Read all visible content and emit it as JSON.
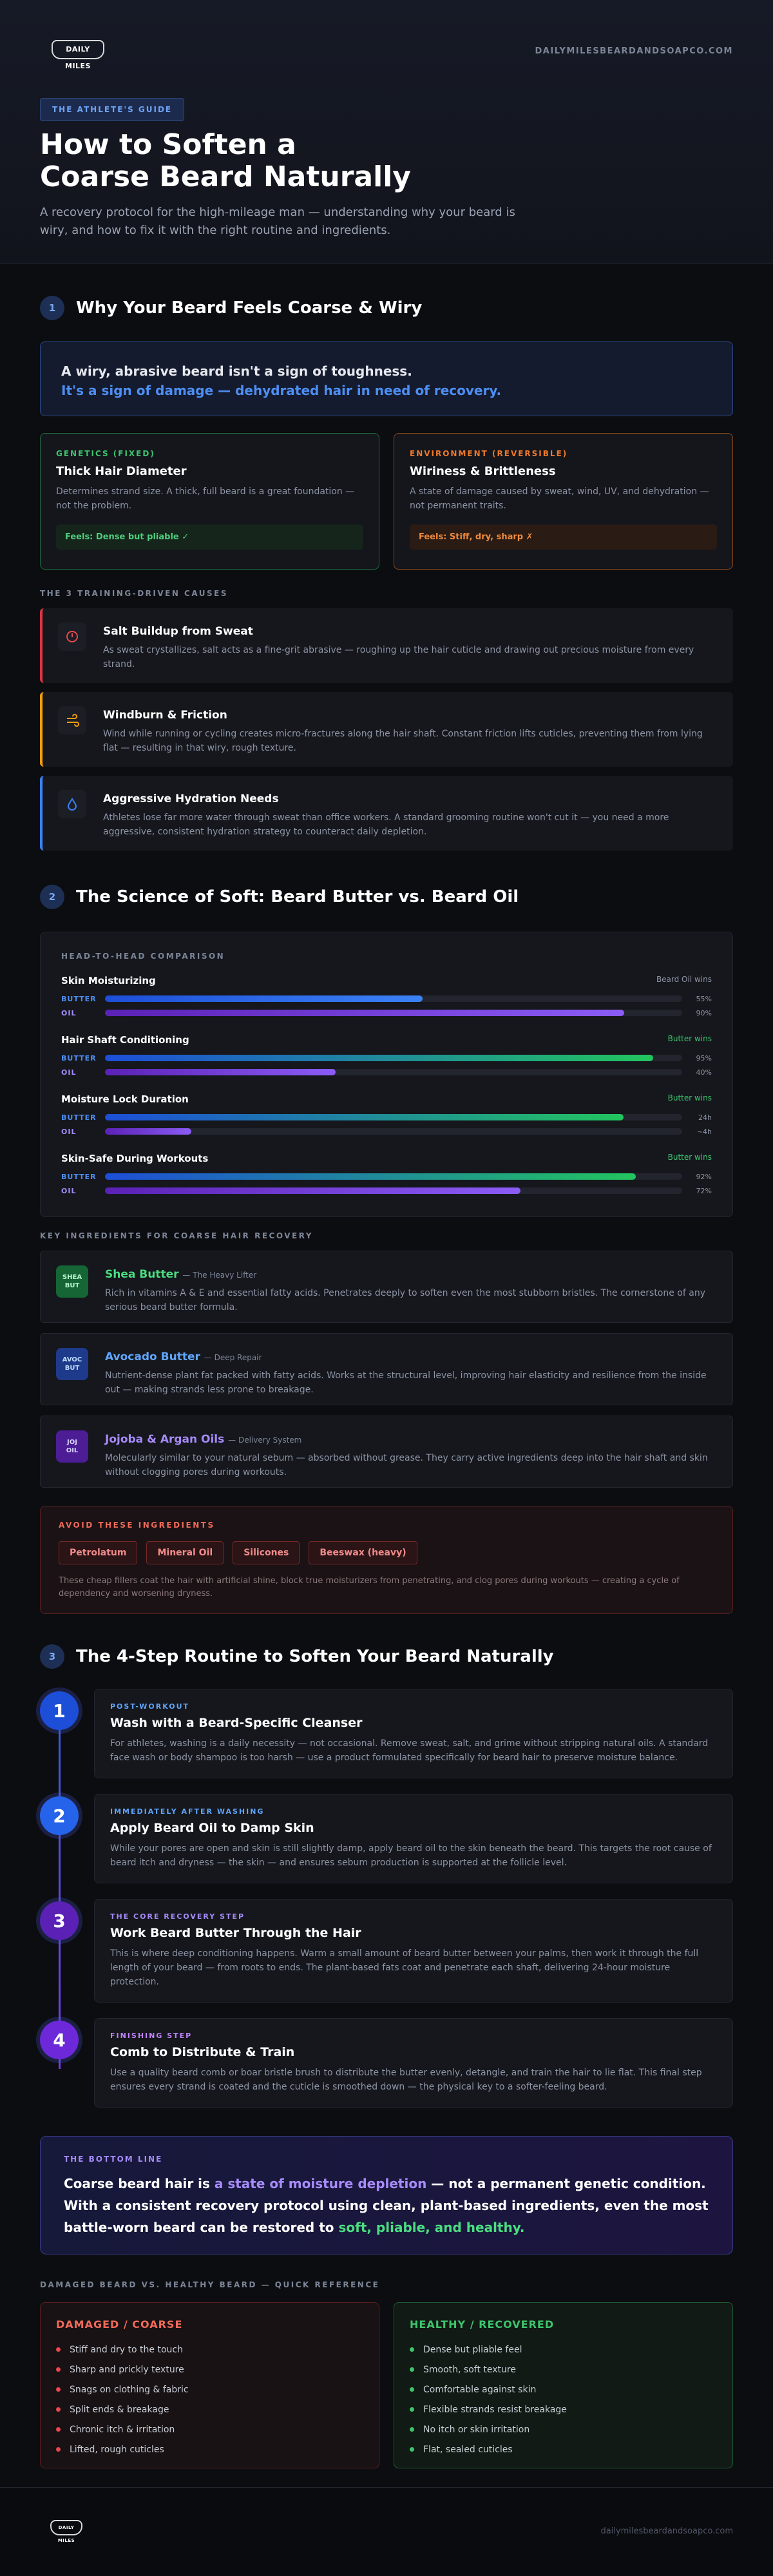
{
  "header": {
    "logo": "DAILY MILES",
    "site": "DAILYMILESBEARDANDSOAPCO.COM",
    "badge": "THE ATHLETE'S GUIDE",
    "title_lines": [
      "How to Soften a",
      "Coarse Beard Naturally"
    ],
    "subtitle": "A recovery protocol for the high-mileage man — understanding why your beard is wiry, and how to fix it with the right routine and ingredients."
  },
  "section1": {
    "number": "1",
    "heading": "Why Your Beard Feels Coarse & Wiry",
    "callout": [
      "A wiry, abrasive beard isn't a sign of toughness.",
      "It's a sign of damage — dehydrated hair in need of recovery."
    ],
    "cards": [
      {
        "label": "GENETICS (FIXED)",
        "title": "Thick Hair Diameter",
        "text": "Determines strand size. A thick, full beard is a great foundation — not the problem.",
        "feels": "Feels: Dense but pliable ✓"
      },
      {
        "label": "ENVIRONMENT (REVERSIBLE)",
        "title": "Wiriness & Brittleness",
        "text": "A state of damage caused by sweat, wind, UV, and dehydration — not permanent traits.",
        "feels": "Feels: Stiff, dry, sharp ✗"
      }
    ],
    "causes_label": "THE 3 TRAINING-DRIVEN CAUSES",
    "causes": [
      {
        "title": "Salt Buildup from Sweat",
        "text": "As sweat crystallizes, salt acts as a fine-grit abrasive — roughing up the hair cuticle and drawing out precious moisture from every strand."
      },
      {
        "title": "Windburn & Friction",
        "text": "Wind while running or cycling creates micro-fractures along the hair shaft. Constant friction lifts cuticles, preventing them from lying flat — resulting in that wiry, rough texture."
      },
      {
        "title": "Aggressive Hydration Needs",
        "text": "Athletes lose far more water through sweat than office workers. A standard grooming routine won't cut it — you need a more aggressive, consistent hydration strategy to counteract daily depletion."
      }
    ]
  },
  "section2": {
    "number": "2",
    "heading": "The Science of Soft: Beard Butter vs. Beard Oil",
    "comparison": {
      "title": "HEAD-TO-HEAD COMPARISON",
      "series": [
        "BUTTER",
        "OIL"
      ],
      "rows": [
        {
          "name": "Skin Moisturizing",
          "verdict": "Beard Oil wins",
          "xlim": [
            0,
            100
          ],
          "butter": {
            "value": 55,
            "label": "55%"
          },
          "oil": {
            "value": 90,
            "label": "90%"
          }
        },
        {
          "name": "Hair Shaft Conditioning",
          "verdict": "Butter wins",
          "xlim": [
            0,
            100
          ],
          "butter": {
            "value": 95,
            "label": "95%"
          },
          "oil": {
            "value": 40,
            "label": "40%"
          }
        },
        {
          "name": "Moisture Lock Duration",
          "verdict": "Butter wins",
          "xlim": [
            0,
            26.7
          ],
          "butter": {
            "value": 24,
            "label": "24h"
          },
          "oil": {
            "value": 4,
            "label": "~4h"
          }
        },
        {
          "name": "Skin-Safe During Workouts",
          "verdict": "Butter wins",
          "xlim": [
            0,
            100
          ],
          "butter": {
            "value": 92,
            "label": "92%"
          },
          "oil": {
            "value": 72,
            "label": "72%"
          }
        }
      ]
    },
    "ingredients_label": "KEY INGREDIENTS FOR COARSE HAIR RECOVERY",
    "ingredients": [
      {
        "icon": "SHEA BUT",
        "name": "Shea Butter",
        "tag": "— The Heavy Lifter",
        "text": "Rich in vitamins A & E and essential fatty acids. Penetrates deeply to soften even the most stubborn bristles. The cornerstone of any serious beard butter formula."
      },
      {
        "icon": "AVOC BUT",
        "name": "Avocado Butter",
        "tag": "— Deep Repair",
        "text": "Nutrient-dense plant fat packed with fatty acids. Works at the structural level, improving hair elasticity and resilience from the inside out — making strands less prone to breakage."
      },
      {
        "icon": "JOJ OIL",
        "name": "Jojoba & Argan Oils",
        "tag": "— Delivery System",
        "text": "Molecularly similar to your natural sebum — absorbed without grease. They carry active ingredients deep into the hair shaft and skin without clogging pores during workouts."
      }
    ],
    "avoid": {
      "title": "AVOID THESE INGREDIENTS",
      "chips": [
        "Petrolatum",
        "Mineral Oil",
        "Silicones",
        "Beeswax (heavy)"
      ],
      "text": "These cheap fillers coat the hair with artificial shine, block true moisturizers from penetrating, and clog pores during workouts — creating a cycle of dependency and worsening dryness."
    }
  },
  "section3": {
    "number": "3",
    "heading": "The 4-Step Routine to Soften Your Beard Naturally",
    "steps": [
      {
        "number": "1",
        "phase": "POST-WORKOUT",
        "title": "Wash with a Beard-Specific Cleanser",
        "text": "For athletes, washing is a daily necessity — not occasional. Remove sweat, salt, and grime without stripping natural oils. A standard face wash or body shampoo is too harsh — use a product formulated specifically for beard hair to preserve moisture balance."
      },
      {
        "number": "2",
        "phase": "IMMEDIATELY AFTER WASHING",
        "title": "Apply Beard Oil to Damp Skin",
        "text": "While your pores are open and skin is still slightly damp, apply beard oil to the skin beneath the beard. This targets the root cause of beard itch and dryness — the skin — and ensures sebum production is supported at the follicle level."
      },
      {
        "number": "3",
        "phase": "THE CORE RECOVERY STEP",
        "title": "Work Beard Butter Through the Hair",
        "text": "This is where deep conditioning happens. Warm a small amount of beard butter between your palms, then work it through the full length of your beard — from roots to ends. The plant-based fats coat and penetrate each shaft, delivering 24-hour moisture protection."
      },
      {
        "number": "4",
        "phase": "FINISHING STEP",
        "title": "Comb to Distribute & Train",
        "text": "Use a quality beard comb or boar bristle brush to distribute the butter evenly, detangle, and train the hair to lie flat. This final step ensures every strand is coated and the cuticle is smoothed down — the physical key to a softer-feeling beard."
      }
    ]
  },
  "bottom_line": {
    "label": "THE BOTTOM LINE",
    "parts": [
      "Coarse beard hair is ",
      "a state of moisture depletion",
      " — not a permanent genetic condition. With a consistent recovery protocol using clean, plant-based ingredients, even the most battle-worn beard can be restored to ",
      "soft, pliable, and healthy."
    ]
  },
  "quick_ref": {
    "label": "DAMAGED BEARD VS. HEALTHY BEARD — QUICK REFERENCE",
    "columns": [
      {
        "title": "DAMAGED / COARSE",
        "items": [
          "Stiff and dry to the touch",
          "Sharp and prickly texture",
          "Snags on clothing & fabric",
          "Split ends & breakage",
          "Chronic itch & irritation",
          "Lifted, rough cuticles"
        ]
      },
      {
        "title": "HEALTHY / RECOVERED",
        "items": [
          "Dense but pliable feel",
          "Smooth, soft texture",
          "Comfortable against skin",
          "Flexible strands resist breakage",
          "No itch or skin irritation",
          "Flat, sealed cuticles"
        ]
      }
    ]
  },
  "footer": {
    "logo": "DAILY MILES",
    "site": "dailymilesbeardandsoapco.com"
  }
}
